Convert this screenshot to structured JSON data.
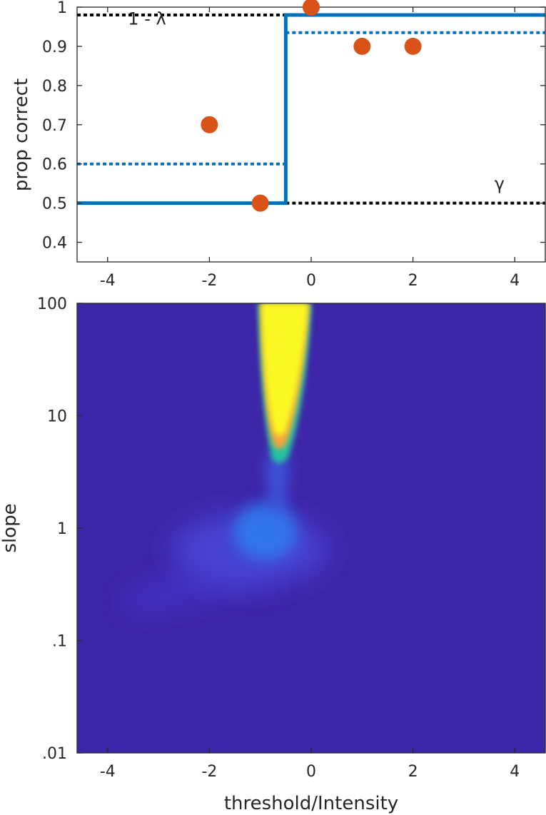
{
  "chart_data": [
    {
      "type": "line",
      "title": "",
      "xlabel": "",
      "ylabel": "prop correct",
      "xlim": [
        -4.6,
        4.6
      ],
      "ylim": [
        0.35,
        1.0
      ],
      "xticks": [
        -4,
        -2,
        0,
        2,
        4
      ],
      "xtick_labels": [
        "-4",
        "-2",
        "0",
        "2",
        "4"
      ],
      "yticks": [
        0.4,
        0.5,
        0.6,
        0.7,
        0.8,
        0.9,
        1.0
      ],
      "ytick_labels": [
        "0.4",
        "0.5",
        "0.6",
        "0.7",
        "0.8",
        "0.9",
        "1"
      ],
      "grid": false,
      "colors": {
        "fit": "#0072BD",
        "points": "#D95319",
        "reference": "#000000"
      },
      "step_fit": {
        "x": [
          -4.6,
          -0.5,
          -0.5,
          4.6
        ],
        "y": [
          0.5,
          0.5,
          0.98,
          0.98
        ]
      },
      "dotted_levels": [
        {
          "x": [
            -4.6,
            -0.5
          ],
          "y": 0.6,
          "color": "#0072BD"
        },
        {
          "x": [
            -0.5,
            4.6
          ],
          "y": 0.935,
          "color": "#0072BD"
        },
        {
          "x": [
            -4.6,
            -0.5
          ],
          "y": 0.98,
          "color": "#000000"
        },
        {
          "x": [
            -0.5,
            4.6
          ],
          "y": 0.5,
          "color": "#000000"
        }
      ],
      "points": {
        "x": [
          -2,
          -1,
          0,
          1,
          2
        ],
        "y": [
          0.7,
          0.5,
          1.0,
          0.9,
          0.9
        ]
      },
      "annotations": [
        {
          "text": "1 - λ",
          "x": -3.6,
          "y": 0.955
        },
        {
          "text": "γ",
          "x": 3.6,
          "y": 0.535
        }
      ]
    },
    {
      "type": "heatmap",
      "title": "",
      "xlabel": "threshold/Intensity",
      "ylabel": "slope",
      "xlim": [
        -4.6,
        4.6
      ],
      "ylim": [
        0.01,
        100
      ],
      "yscale": "log",
      "xticks": [
        -4,
        -2,
        0,
        2,
        4
      ],
      "xtick_labels": [
        "-4",
        "-2",
        "0",
        "2",
        "4"
      ],
      "yticks": [
        0.01,
        0.1,
        1,
        10,
        100
      ],
      "ytick_labels": [
        ".01",
        ".1",
        "1",
        "10",
        "100"
      ],
      "colormap": "parula",
      "background_color": "#3E26A8",
      "features": [
        {
          "name": "peak",
          "x_range": [
            -1.0,
            0.0
          ],
          "slope_range": [
            5,
            100
          ],
          "level": "high"
        },
        {
          "name": "shoulder",
          "x_center": -0.8,
          "slope_center": 1.0,
          "level": "medium"
        },
        {
          "name": "tail",
          "x_range": [
            -3.5,
            -0.8
          ],
          "slope_range": [
            0.2,
            0.6
          ],
          "level": "low"
        }
      ]
    }
  ]
}
